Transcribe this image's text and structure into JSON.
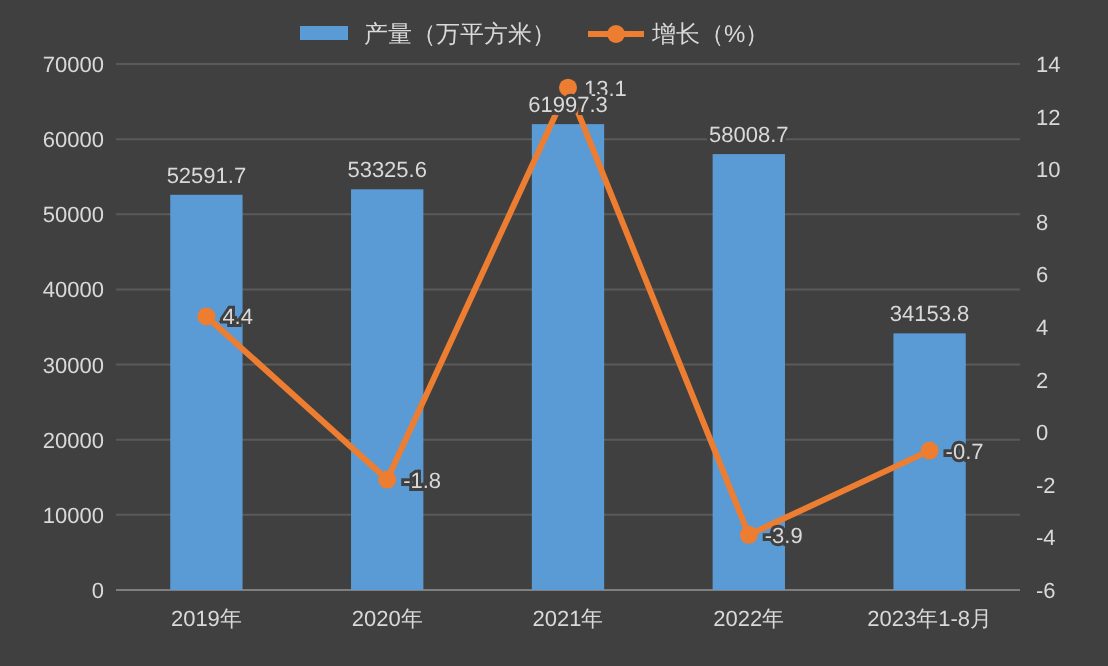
{
  "chart_data": {
    "type": "bar",
    "categories": [
      "2019年",
      "2020年",
      "2021年",
      "2022年",
      "2023年1-8月"
    ],
    "series": [
      {
        "name": "产量（万平方米）",
        "color": "#5b9bd5",
        "values": [
          52591.7,
          53325.6,
          61997.3,
          58008.7,
          34153.8
        ]
      },
      {
        "name": "增长（%）",
        "type": "line",
        "axis": "y2",
        "color": "#ed7d31",
        "values": [
          4.4,
          -1.8,
          13.1,
          -3.9,
          -0.7
        ]
      }
    ],
    "ylim": [
      0,
      70000
    ],
    "yticks": [
      0,
      10000,
      20000,
      30000,
      40000,
      50000,
      60000,
      70000
    ],
    "y2lim": [
      -6,
      14
    ],
    "y2ticks": [
      -6,
      -4,
      -2,
      0,
      2,
      4,
      6,
      8,
      10,
      12,
      14
    ],
    "grid": "y",
    "legend": "top",
    "data_labels": true,
    "marker": "circle"
  }
}
